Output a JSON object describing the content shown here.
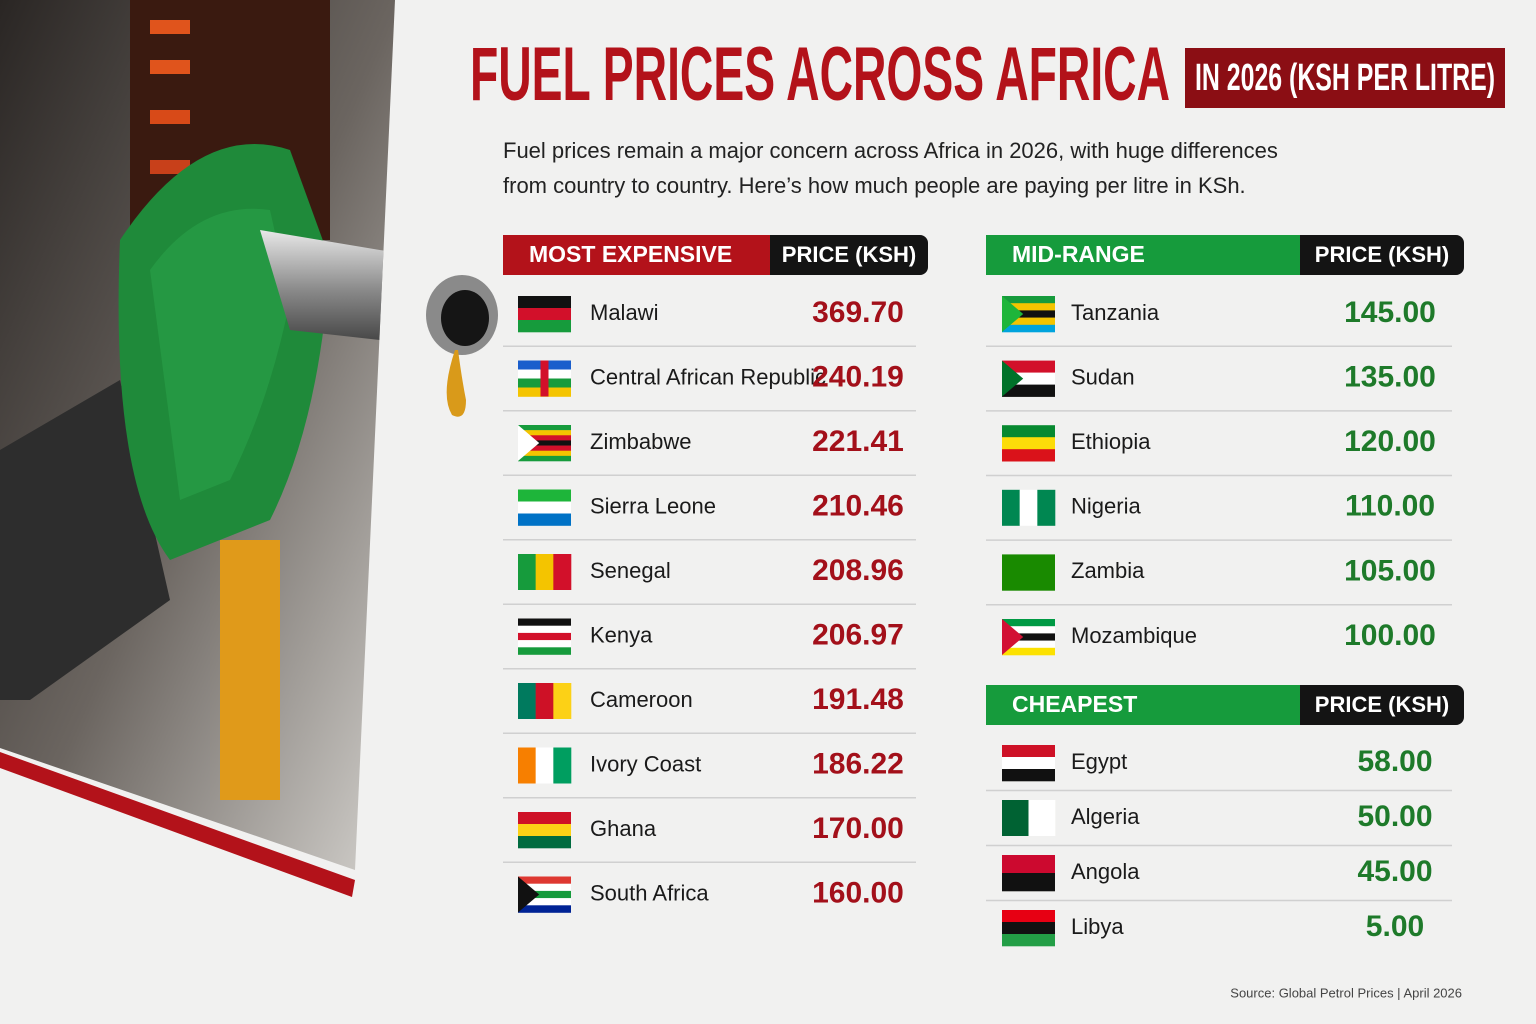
{
  "header": {
    "title": "FUEL PRICES ACROSS AFRICA",
    "badge": "IN 2026 (KSH PER LITRE)"
  },
  "intro": [
    "Fuel prices remain a major concern across Africa in 2026, with huge differences",
    "from country to country. Here’s how much people are paying per litre in KSh."
  ],
  "tables": [
    {
      "heading": "MOST EXPENSIVE",
      "price_heading": "PRICE (KSH)",
      "rows": [
        {
          "country": "Malawi",
          "price": "369.70"
        },
        {
          "country": "Central African Republic",
          "price": "240.19"
        },
        {
          "country": "Zimbabwe",
          "price": "221.41"
        },
        {
          "country": "Sierra Leone",
          "price": "210.46"
        },
        {
          "country": "Senegal",
          "price": "208.96"
        },
        {
          "country": "Kenya",
          "price": "206.97"
        },
        {
          "country": "Cameroon",
          "price": "191.48"
        },
        {
          "country": "Ivory Coast",
          "price": "186.22"
        },
        {
          "country": "Ghana",
          "price": "170.00"
        },
        {
          "country": "South Africa",
          "price": "160.00"
        }
      ]
    },
    {
      "heading": "MID-RANGE",
      "price_heading": "PRICE (KSH)",
      "rows": [
        {
          "country": "Tanzania",
          "price": "145.00"
        },
        {
          "country": "Sudan",
          "price": "135.00"
        },
        {
          "country": "Ethiopia",
          "price": "120.00"
        },
        {
          "country": "Nigeria",
          "price": "110.00"
        },
        {
          "country": "Zambia",
          "price": "105.00"
        },
        {
          "country": "Mozambique",
          "price": "100.00"
        }
      ]
    },
    {
      "heading": "CHEAPEST",
      "price_heading": "PRICE (KSH)",
      "rows": [
        {
          "country": "Egypt",
          "price": "58.00"
        },
        {
          "country": "Algeria",
          "price": "50.00"
        },
        {
          "country": "Angola",
          "price": "45.00"
        },
        {
          "country": "Libya",
          "price": "5.00"
        }
      ]
    }
  ],
  "source": "Source: Global Petrol Prices | April 2026"
}
